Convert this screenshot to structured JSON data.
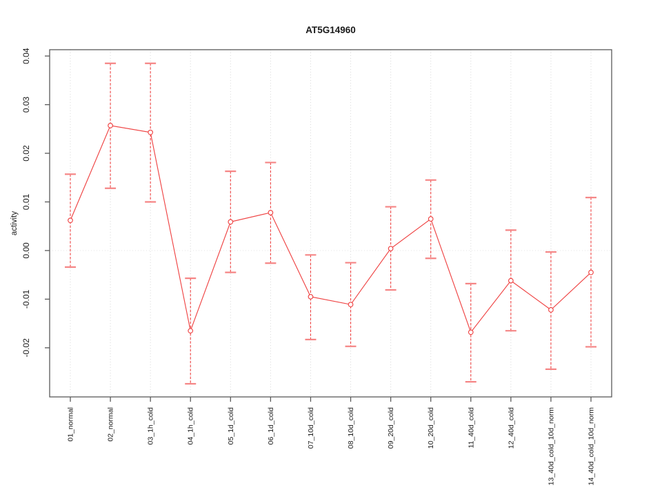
{
  "chart_data": {
    "type": "line",
    "title": "AT5G14960",
    "xlabel": "",
    "ylabel": "activity",
    "legend_position": "none",
    "grid": {
      "vertical_dotted_per_category": true,
      "horizontal_dotted_zero_line": true
    },
    "ylim": [
      -0.0301,
      0.0413
    ],
    "yticks": [
      0.04,
      0.03,
      0.02,
      0.01,
      0,
      -0.01,
      -0.02
    ],
    "ytick_labels": [
      "0.04",
      "0.03",
      "0.02",
      "0.01",
      "0.00",
      "-0.01",
      "-0.02"
    ],
    "categories": [
      "01_normal",
      "02_normal",
      "03_1h_cold",
      "04_1h_cold",
      "05_1d_cold",
      "06_1d_cold",
      "07_10d_cold",
      "08_10d_cold",
      "09_20d_cold",
      "10_20d_cold",
      "11_40d_cold",
      "12_40d_cold",
      "13_40d_cold_10d_norm",
      "14_40d_cold_10d_norm"
    ],
    "series": [
      {
        "name": "activity",
        "marker": "open-circle",
        "line_style": "solid",
        "error_bar_style": "dashed",
        "values": [
          0.0062,
          0.0257,
          0.0243,
          -0.0165,
          0.0059,
          0.0078,
          -0.0095,
          -0.0111,
          0.0004,
          0.0065,
          -0.0168,
          -0.0062,
          -0.0122,
          -0.0045
        ],
        "error_upper": [
          0.0157,
          0.0385,
          0.0385,
          -0.0057,
          0.0163,
          0.0181,
          -0.0009,
          -0.0025,
          0.009,
          0.0145,
          -0.0068,
          0.0042,
          -0.0003,
          0.0109
        ],
        "error_lower": [
          -0.0034,
          0.0128,
          0.01,
          -0.0274,
          -0.0045,
          -0.0026,
          -0.0183,
          -0.0197,
          -0.0081,
          -0.0016,
          -0.027,
          -0.0165,
          -0.0244,
          -0.0198
        ]
      }
    ],
    "colors": {
      "series": "#ef4343",
      "error_cap": "#f58585",
      "marker_fill": "#ffffff",
      "grid": "#d9d9d9",
      "zero_line": "#e3e3e3",
      "axis": "#595959",
      "text": "#1a1a1a"
    }
  }
}
